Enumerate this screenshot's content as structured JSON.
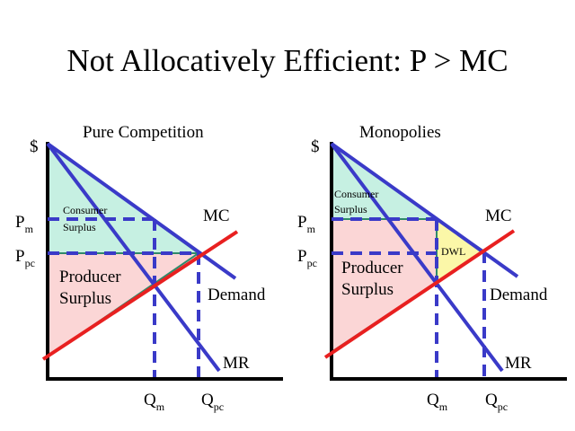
{
  "slide": {
    "title": "Not Allocatively Efficient: P > MC"
  },
  "colors": {
    "demand_line": "#3a3ac8",
    "mc_line": "#e82020",
    "consumer_surplus_fill": "#c6f0e2",
    "producer_surplus_fill": "#fbd6d6",
    "dwl_fill": "#fbf7a8",
    "axis": "#000000",
    "region_border": "#2f8a6a"
  },
  "panels": [
    {
      "title": "Pure Competition",
      "y_axis_label": "$",
      "price_labels": [
        {
          "main": "P",
          "sub": "m"
        },
        {
          "main": "P",
          "sub": "pc"
        }
      ],
      "quantity_labels": [
        {
          "main": "Q",
          "sub": "m"
        },
        {
          "main": "Q",
          "sub": "pc"
        }
      ],
      "curve_labels": {
        "mc": "MC",
        "demand": "Demand",
        "mr": "MR"
      },
      "regions": {
        "consumer_surplus": [
          "Consumer",
          "Surplus"
        ],
        "producer_surplus": [
          "Producer",
          "Surplus"
        ]
      }
    },
    {
      "title": "Monopolies",
      "y_axis_label": "$",
      "price_labels": [
        {
          "main": "P",
          "sub": "m"
        },
        {
          "main": "P",
          "sub": "pc"
        }
      ],
      "quantity_labels": [
        {
          "main": "Q",
          "sub": "m"
        },
        {
          "main": "Q",
          "sub": "pc"
        }
      ],
      "curve_labels": {
        "mc": "MC",
        "demand": "Demand",
        "mr": "MR"
      },
      "regions": {
        "consumer_surplus": [
          "Consumer",
          "Surplus"
        ],
        "producer_surplus": [
          "Producer",
          "Surplus"
        ],
        "dwl": "DWL"
      }
    }
  ]
}
